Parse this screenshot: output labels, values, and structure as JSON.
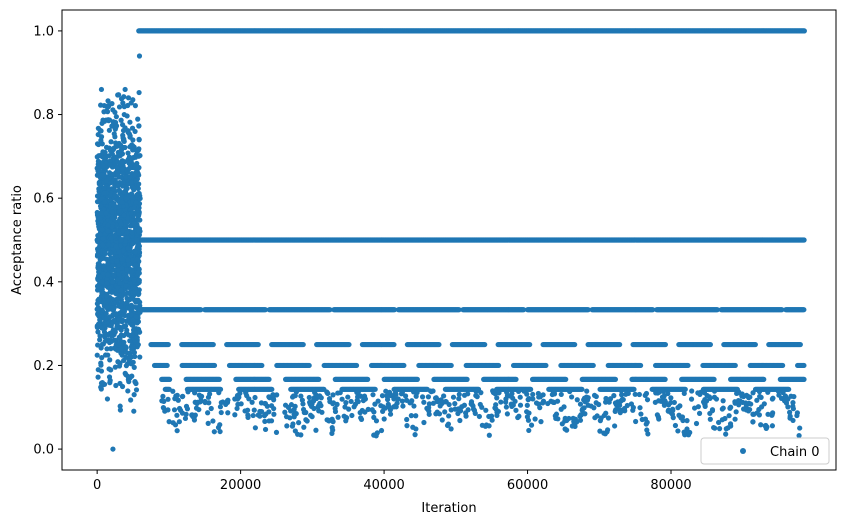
{
  "chart_data": {
    "type": "scatter",
    "xlabel": "Iteration",
    "ylabel": "Acceptance ratio",
    "xlim": [
      -4900,
      103000
    ],
    "ylim": [
      -0.05,
      1.05
    ],
    "x_ticks": [
      0,
      20000,
      40000,
      60000,
      80000
    ],
    "y_ticks": [
      0.0,
      0.2,
      0.4,
      0.6,
      0.8,
      1.0
    ],
    "grid": false,
    "legend_position": "lower-right",
    "marker_color": "#1f77b4",
    "series": [
      {
        "name": "Chain 0",
        "burnin_region": {
          "x_range": [
            0,
            6000
          ],
          "y_range": [
            0.05,
            0.86
          ]
        },
        "levels": [
          {
            "y": 1.0,
            "x_range": [
              5800,
              98600
            ]
          },
          {
            "y": 0.5,
            "x_range": [
              0,
              98600
            ]
          },
          {
            "y": 0.3333,
            "x_range": [
              6000,
              98600
            ]
          },
          {
            "y": 0.25,
            "x_range": [
              7500,
              98600
            ]
          },
          {
            "y": 0.2,
            "x_range": [
              8000,
              98600
            ]
          },
          {
            "y": 0.1667,
            "x_range": [
              9000,
              98600
            ]
          },
          {
            "y": 0.1429,
            "x_range": [
              9500,
              98600
            ]
          }
        ],
        "outliers": [
          {
            "x": 2200,
            "y": 0.0
          },
          {
            "x": 5900,
            "y": 0.94
          },
          {
            "x": 600,
            "y": 0.86
          },
          {
            "x": 3900,
            "y": 0.86
          },
          {
            "x": 25000,
            "y": 0.04
          },
          {
            "x": 30500,
            "y": 0.045
          },
          {
            "x": 86100,
            "y": 0.05
          }
        ]
      }
    ]
  }
}
